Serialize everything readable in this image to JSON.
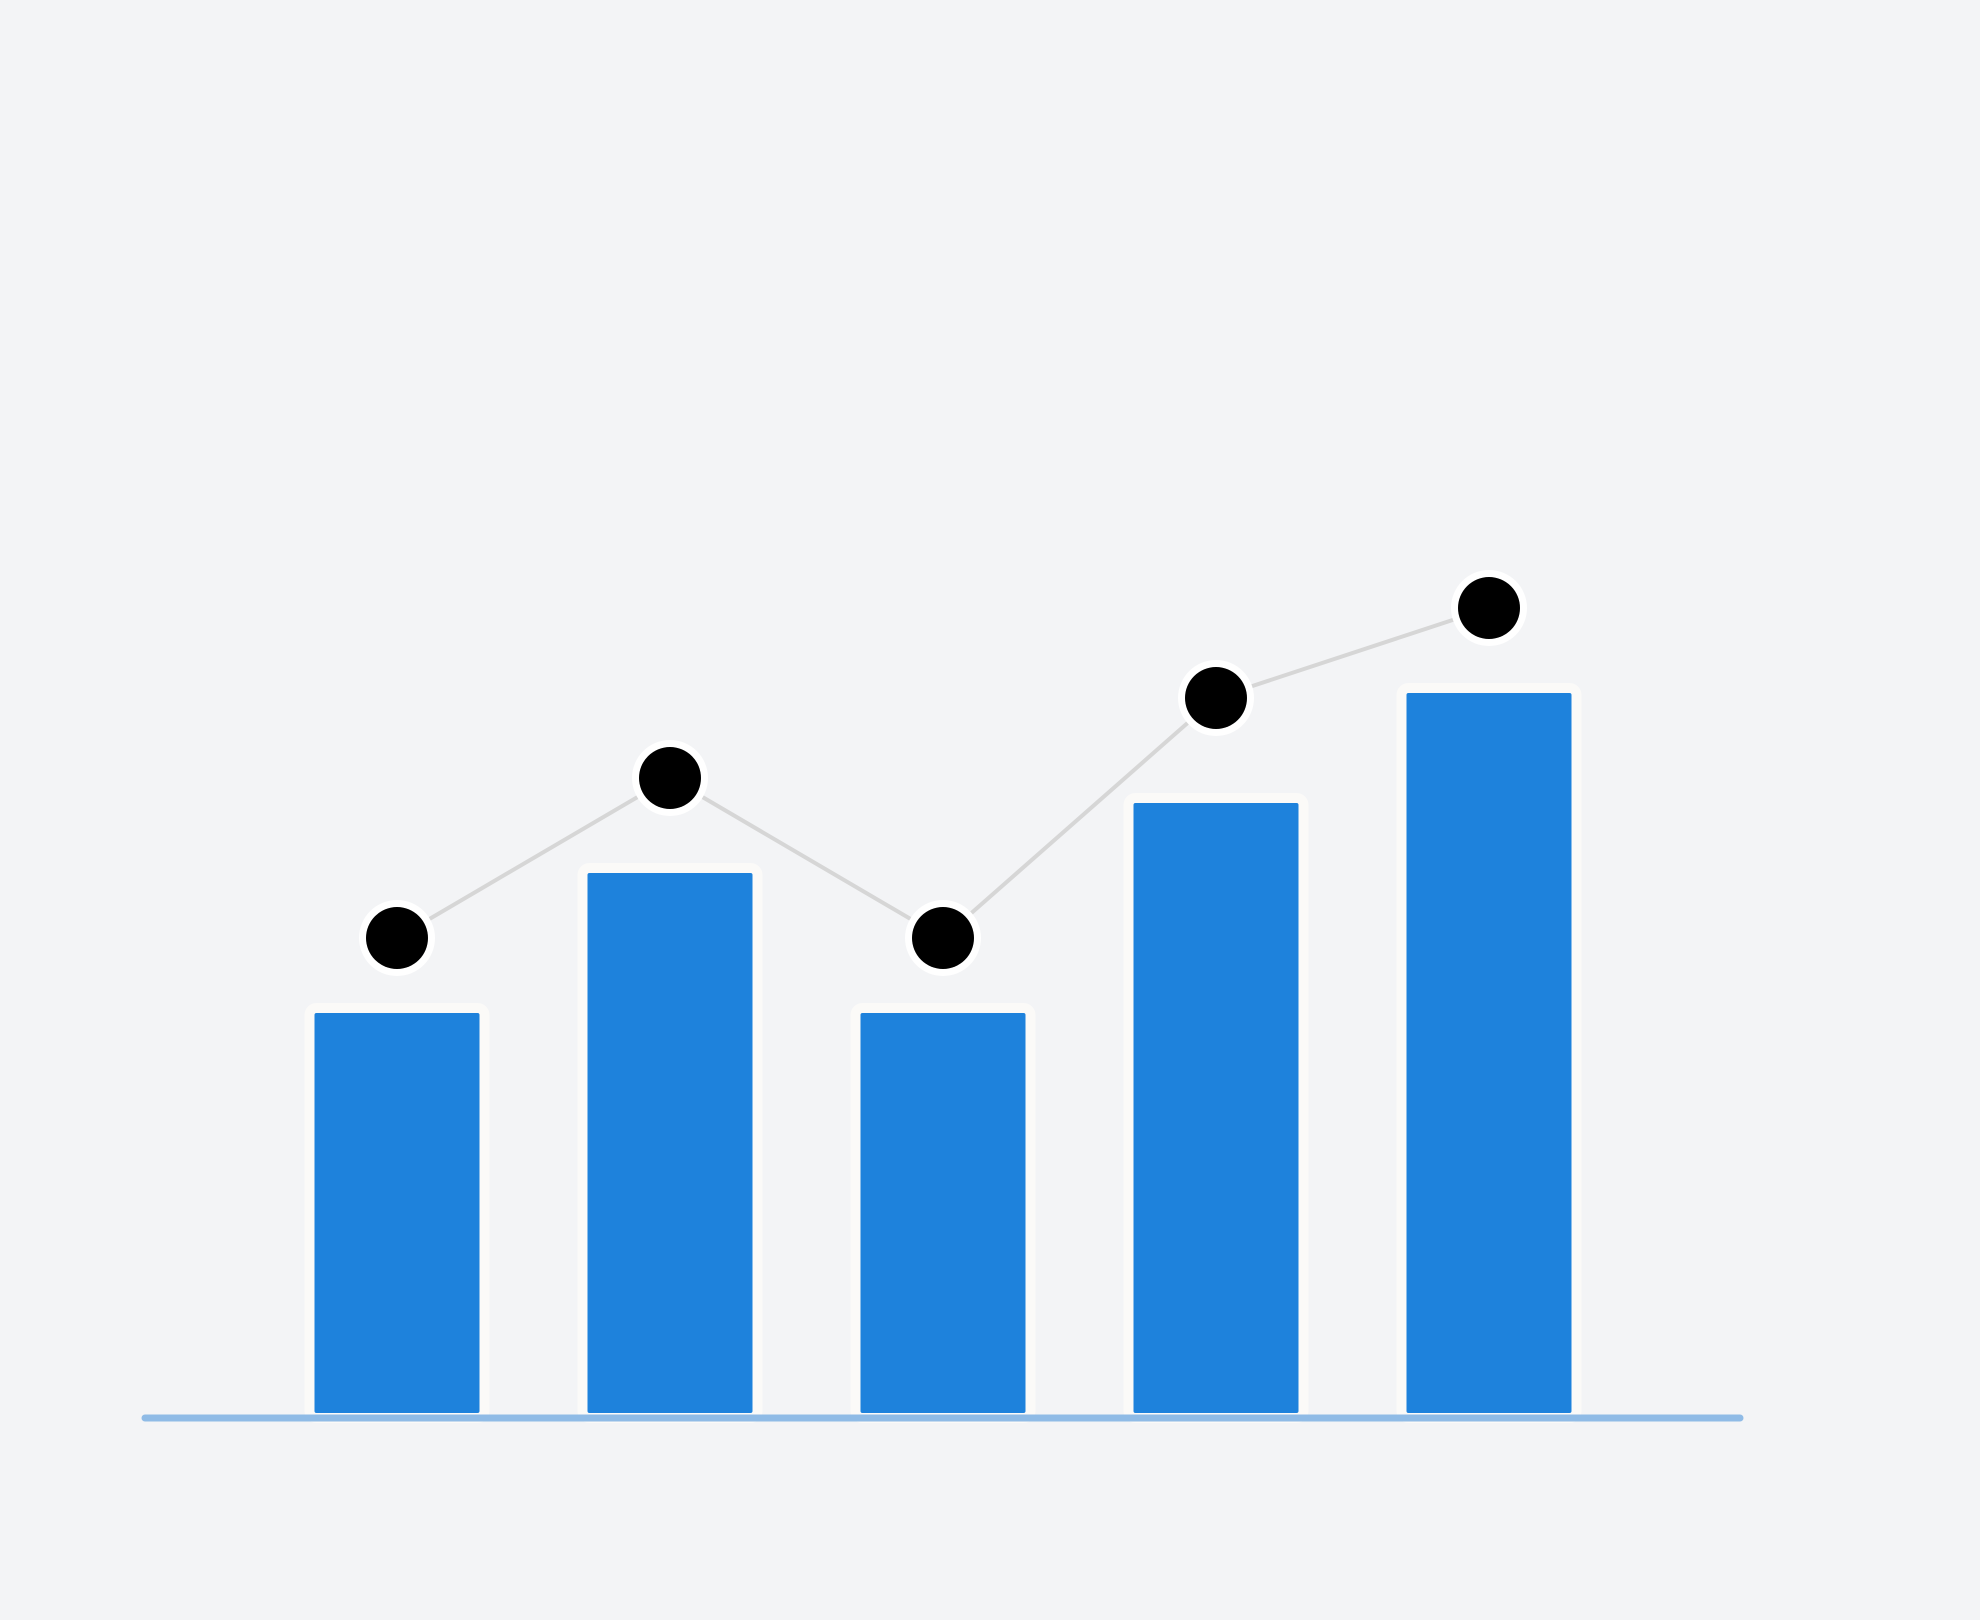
{
  "colors": {
    "background": "#f3f4f6",
    "bar": "#1e82dc",
    "bar_outline": "#fbfaf8",
    "baseline": "#8fbbe6",
    "line": "#d6d6d6",
    "point": "#000000",
    "point_halo": "#ffffff"
  },
  "chart_data": {
    "type": "bar",
    "categories": [
      "",
      "",
      "",
      "",
      ""
    ],
    "values": [
      41,
      55,
      41,
      62,
      73
    ],
    "ylim": [
      0,
      100
    ],
    "grid": false,
    "legend": "none",
    "overlay": {
      "type": "line",
      "values": [
        48,
        64,
        48,
        72,
        81
      ],
      "markers": true
    },
    "title": "",
    "xlabel": "",
    "ylabel": ""
  }
}
